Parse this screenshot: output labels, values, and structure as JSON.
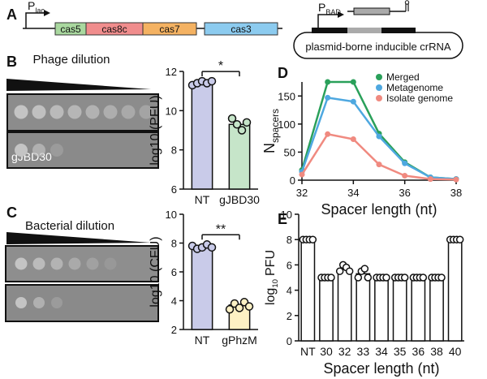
{
  "panel_labels": [
    "A",
    "B",
    "C",
    "D",
    "E"
  ],
  "diagram": {
    "promoter_lac": "P",
    "promoter_lac_sub": "lac",
    "genes": [
      "cas5",
      "cas8c",
      "cas7",
      "cas3"
    ],
    "promoter_bad": "P",
    "promoter_bad_sub": "BAD",
    "plasmid_label": "plasmid-borne inducible crRNA"
  },
  "images": {
    "phage_title": "Phage dilution",
    "phage_label": "gJBD30",
    "bacterial_title": "Bacterial dilution"
  },
  "chart_data": [
    {
      "type": "bar",
      "ylabel": "log10 (PFU)",
      "categories": [
        "NT",
        "gJBD30"
      ],
      "values": [
        11.4,
        9.3
      ],
      "colors": [
        "#c9cbe9",
        "#c6e5c9"
      ],
      "points": [
        [
          11.3,
          11.4,
          11.5,
          11.4,
          11.5
        ],
        [
          9.6,
          9.3,
          9.0,
          9.4
        ]
      ],
      "ylim": [
        6,
        12
      ],
      "yticks": [
        6,
        8,
        10,
        12
      ],
      "annotation": "*"
    },
    {
      "type": "bar",
      "ylabel": "log10 (CFU)",
      "categories": [
        "NT",
        "gPhzM"
      ],
      "values": [
        7.7,
        3.7
      ],
      "colors": [
        "#c9cbe9",
        "#fdf1c4"
      ],
      "points": [
        [
          7.8,
          7.6,
          7.7,
          7.9,
          7.7
        ],
        [
          3.4,
          3.8,
          3.5,
          3.9,
          3.6
        ]
      ],
      "ylim": [
        2,
        10
      ],
      "yticks": [
        2,
        4,
        6,
        8,
        10
      ],
      "annotation": "**"
    },
    {
      "type": "line",
      "ylabel": "N",
      "ylabel_sub": "spacers",
      "xlabel": "Spacer length (nt)",
      "x": [
        32,
        33,
        34,
        35,
        36,
        37,
        38
      ],
      "series": [
        {
          "name": "Merged",
          "color": "#2aa05a",
          "values": [
            18,
            175,
            175,
            83,
            32,
            5,
            2
          ]
        },
        {
          "name": "Metagenome",
          "color": "#4ea8e0",
          "values": [
            15,
            147,
            140,
            78,
            30,
            5,
            2
          ]
        },
        {
          "name": "Isolate genome",
          "color": "#f08a80",
          "values": [
            10,
            82,
            73,
            28,
            8,
            2,
            1
          ]
        }
      ],
      "xlim": [
        32,
        38
      ],
      "xticks": [
        32,
        34,
        36,
        38
      ],
      "ylim": [
        0,
        175
      ],
      "yticks": [
        0,
        50,
        100,
        150
      ]
    },
    {
      "type": "bar",
      "ylabel": "log",
      "ylabel_sub": "10",
      "ylabel_rest": "PFU",
      "xlabel": "Spacer length (nt)",
      "categories": [
        "NT",
        "30",
        "32",
        "33",
        "34",
        "35",
        "36",
        "38",
        "40"
      ],
      "values": [
        8,
        5,
        5.7,
        5.3,
        5,
        5,
        5,
        5,
        8
      ],
      "colors": [
        "#ffffff",
        "#ffffff",
        "#ffffff",
        "#ffffff",
        "#ffffff",
        "#ffffff",
        "#ffffff",
        "#ffffff",
        "#ffffff"
      ],
      "points": [
        [
          8,
          8,
          8,
          8
        ],
        [
          5,
          5,
          5,
          5
        ],
        [
          5.5,
          6,
          5.8,
          5.5
        ],
        [
          5,
          5.5,
          5.7,
          5
        ],
        [
          5,
          5,
          5,
          5
        ],
        [
          5,
          5,
          5,
          5
        ],
        [
          5,
          5,
          5,
          5
        ],
        [
          5,
          5,
          5,
          5
        ],
        [
          8,
          8,
          8,
          8
        ]
      ],
      "ylim": [
        0,
        10
      ],
      "yticks": [
        0,
        2,
        4,
        6,
        8,
        10
      ]
    }
  ]
}
